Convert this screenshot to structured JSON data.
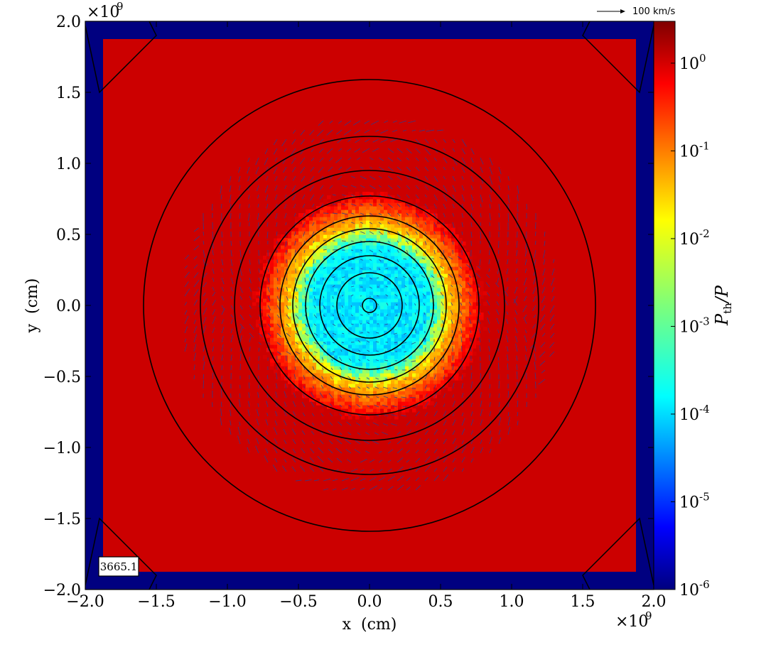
{
  "chart_data": {
    "type": "heatmap",
    "xlabel": "x  (cm)",
    "ylabel": "y  (cm)",
    "xlim": [
      -2.0,
      2.0
    ],
    "ylim": [
      -2.0,
      2.0
    ],
    "axis_multiplier": {
      "base": "×10",
      "exponent": "9"
    },
    "x_ticks": [
      {
        "value": -2.0,
        "label": "−2.0"
      },
      {
        "value": -1.5,
        "label": "−1.5"
      },
      {
        "value": -1.0,
        "label": "−1.0"
      },
      {
        "value": -0.5,
        "label": "−0.5"
      },
      {
        "value": 0.0,
        "label": "0.0"
      },
      {
        "value": 0.5,
        "label": "0.5"
      },
      {
        "value": 1.0,
        "label": "1.0"
      },
      {
        "value": 1.5,
        "label": "1.5"
      },
      {
        "value": 2.0,
        "label": "2.0"
      }
    ],
    "y_ticks": [
      {
        "value": -2.0,
        "label": "−2.0"
      },
      {
        "value": -1.5,
        "label": "−1.5"
      },
      {
        "value": -1.0,
        "label": "−1.0"
      },
      {
        "value": -0.5,
        "label": "−0.5"
      },
      {
        "value": 0.0,
        "label": "0.0"
      },
      {
        "value": 0.5,
        "label": "0.5"
      },
      {
        "value": 1.0,
        "label": "1.0"
      },
      {
        "value": 1.5,
        "label": "1.5"
      },
      {
        "value": 2.0,
        "label": "2.0"
      }
    ],
    "colorbar": {
      "label_main": "P",
      "label_sub": "th",
      "label_tail": "/P",
      "scale": "log",
      "range": [
        1e-06,
        3.0
      ],
      "colormap": "jet",
      "ticks": [
        {
          "value": 1,
          "base": "10",
          "exp": "0"
        },
        {
          "value": 0.1,
          "base": "10",
          "exp": "-1"
        },
        {
          "value": 0.01,
          "base": "10",
          "exp": "-2"
        },
        {
          "value": 0.001,
          "base": "10",
          "exp": "-3"
        },
        {
          "value": 0.0001,
          "base": "10",
          "exp": "-4"
        },
        {
          "value": 1e-05,
          "base": "10",
          "exp": "-5"
        },
        {
          "value": 1e-06,
          "base": "10",
          "exp": "-6"
        }
      ]
    },
    "field": {
      "background_value": 1.0,
      "boundary_value": 1e-06,
      "boundary_width": 0.125,
      "core_value": 0.0002,
      "core_radius": 0.55,
      "transition_radius_outer": 0.8,
      "intermediate_value": 0.02,
      "corner_lines": true
    },
    "contour_radii": [
      0.05,
      0.23,
      0.35,
      0.45,
      0.54,
      0.63,
      0.77,
      0.95,
      1.19,
      1.59
    ],
    "quiver": {
      "key_label": "100 km/s",
      "key_speed": 100,
      "color": "#2a3a8c"
    },
    "time_label": "3665.1",
    "colors": {
      "frame": "#000000",
      "contour": "#000000",
      "background_red": "#cc0000",
      "boundary_navy": "#000080",
      "arrow": "#2b3c8e"
    }
  }
}
